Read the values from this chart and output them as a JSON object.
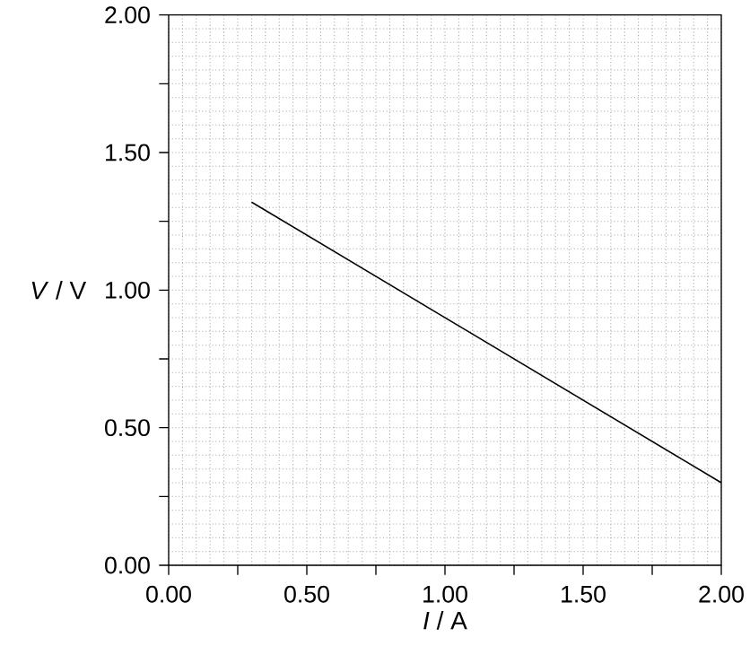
{
  "chart_data": {
    "type": "line",
    "xlabel": "*I* / A",
    "ylabel": "*V* / V",
    "x": [
      0.3,
      2.0
    ],
    "series": [
      {
        "color": "#000000",
        "values": [
          1.32,
          0.3
        ]
      }
    ],
    "xlim": [
      0,
      2
    ],
    "ylim": [
      0,
      2
    ],
    "xticks": [
      {
        "value": 0,
        "label": "0.00"
      },
      {
        "value": 0.25,
        "label": null
      },
      {
        "value": 0.5,
        "label": "0.50"
      },
      {
        "value": 0.75,
        "label": null
      },
      {
        "value": 1,
        "label": "1.00"
      },
      {
        "value": 1.25,
        "label": null
      },
      {
        "value": 1.5,
        "label": "1.50"
      },
      {
        "value": 1.75,
        "label": null
      },
      {
        "value": 2,
        "label": "2.00"
      }
    ],
    "yticks": [
      {
        "value": 0,
        "label": "0.00"
      },
      {
        "value": 0.25,
        "label": null
      },
      {
        "value": 0.5,
        "label": "0.50"
      },
      {
        "value": 0.75,
        "label": null
      },
      {
        "value": 1,
        "label": "1.00"
      },
      {
        "value": 1.25,
        "label": null
      },
      {
        "value": 1.5,
        "label": "1.50"
      },
      {
        "value": 1.75,
        "label": null
      },
      {
        "value": 2,
        "label": "2.00"
      }
    ],
    "grid": true,
    "marker": "none",
    "line_style": "solid"
  }
}
